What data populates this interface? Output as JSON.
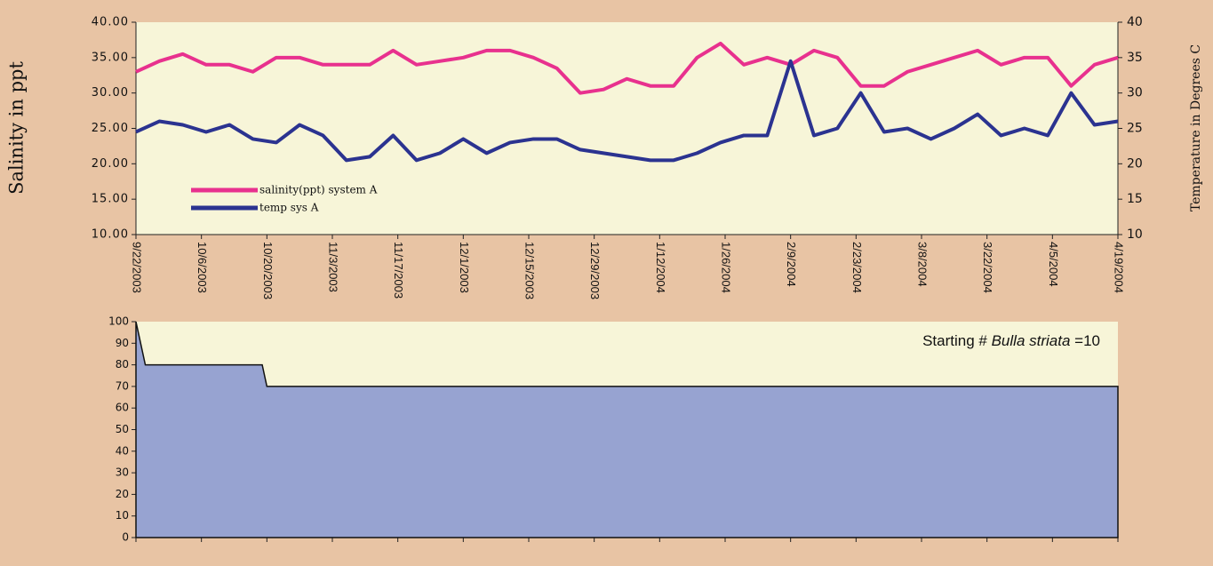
{
  "chart_data": [
    {
      "type": "line",
      "ylabel": "Salinity in ppt",
      "y2label": "Temperature in Degrees C",
      "x": [
        "9/22/2003",
        "9/27/2003",
        "10/2/2003",
        "10/7/2003",
        "10/12/2003",
        "10/17/2003",
        "10/22/2003",
        "10/27/2003",
        "11/1/2003",
        "11/6/2003",
        "11/11/2003",
        "11/16/2003",
        "11/21/2003",
        "11/26/2003",
        "12/1/2003",
        "12/6/2003",
        "12/11/2003",
        "12/16/2003",
        "12/21/2003",
        "12/26/2003",
        "12/31/2003",
        "1/5/2004",
        "1/10/2004",
        "1/15/2004",
        "1/20/2004",
        "1/25/2004",
        "1/30/2004",
        "2/4/2004",
        "2/9/2004",
        "2/14/2004",
        "2/19/2004",
        "2/24/2004",
        "2/29/2004",
        "3/5/2004",
        "3/10/2004",
        "3/15/2004",
        "3/20/2004",
        "3/25/2004",
        "3/30/2004",
        "4/4/2004",
        "4/9/2004",
        "4/14/2004",
        "4/19/2004"
      ],
      "series": [
        {
          "name": "salinity(ppt) system A",
          "color": "#e8318e",
          "axis": "y",
          "values": [
            33,
            34.5,
            35.5,
            34,
            34,
            33,
            35,
            35,
            34,
            34,
            34,
            36,
            34,
            34.5,
            35,
            36,
            36,
            35,
            33.5,
            30,
            30.5,
            32,
            31,
            31,
            35,
            37,
            34,
            35,
            34,
            36,
            35,
            31,
            31,
            33,
            34,
            35,
            36,
            34,
            35,
            35,
            31,
            34,
            35
          ]
        },
        {
          "name": "temp sys A",
          "color": "#2b3390",
          "axis": "y2",
          "values": [
            24.5,
            26,
            25.5,
            24.5,
            25.5,
            23.5,
            23,
            25.5,
            24,
            20.5,
            21,
            24,
            20.5,
            21.5,
            23.5,
            21.5,
            23,
            23.5,
            23.5,
            22,
            21.5,
            21,
            20.5,
            20.5,
            21.5,
            23,
            24,
            24,
            34.5,
            24,
            25,
            30,
            24.5,
            25,
            23.5,
            25,
            27,
            24,
            25,
            24,
            30,
            25.5,
            26
          ]
        }
      ],
      "xlim": [
        "9/22/2003",
        "4/19/2004"
      ],
      "xticks": [
        "9/22/2003",
        "10/6/2003",
        "10/20/2003",
        "11/3/2003",
        "11/17/2003",
        "12/1/2003",
        "12/15/2003",
        "12/29/2003",
        "1/12/2004",
        "1/26/2004",
        "2/9/2004",
        "2/23/2004",
        "3/8/2004",
        "3/22/2004",
        "4/5/2004",
        "4/19/2004"
      ],
      "ylim": [
        10,
        40
      ],
      "yticks": [
        {
          "value": 10,
          "label": "10.00"
        },
        {
          "value": 15,
          "label": "15.00"
        },
        {
          "value": 20,
          "label": "20.00"
        },
        {
          "value": 25,
          "label": "25.00"
        },
        {
          "value": 30,
          "label": "30.00"
        },
        {
          "value": 35,
          "label": "35.00"
        },
        {
          "value": 40,
          "label": "40.00"
        }
      ],
      "y2lim": [
        10,
        40
      ],
      "y2ticks": [
        10,
        15,
        20,
        25,
        30,
        35,
        40
      ],
      "legend_loc": "lower left",
      "grid": false
    },
    {
      "type": "area",
      "x": [
        "9/22/2003",
        "9/24/2003",
        "10/19/2003",
        "10/20/2003",
        "4/19/2004"
      ],
      "values": [
        100,
        80,
        80,
        70,
        70
      ],
      "color": "#97a3d1",
      "xlim": [
        "9/22/2003",
        "4/19/2004"
      ],
      "xticks": [
        "9/22/2003",
        "10/6/2003",
        "10/20/2003",
        "11/3/2003",
        "11/17/2003",
        "12/1/2003",
        "12/15/2003",
        "12/29/2003",
        "1/12/2004",
        "1/26/2004",
        "2/9/2004",
        "2/23/2004",
        "3/8/2004",
        "3/22/2004",
        "4/5/2004",
        "4/19/2004"
      ],
      "ylim": [
        0,
        100
      ],
      "yticks": [
        0,
        10,
        20,
        30,
        40,
        50,
        60,
        70,
        80,
        90,
        100
      ],
      "annotation": {
        "prefix": "Starting #",
        "species": "Bulla striata",
        "suffix": "=10"
      },
      "grid": false
    }
  ]
}
